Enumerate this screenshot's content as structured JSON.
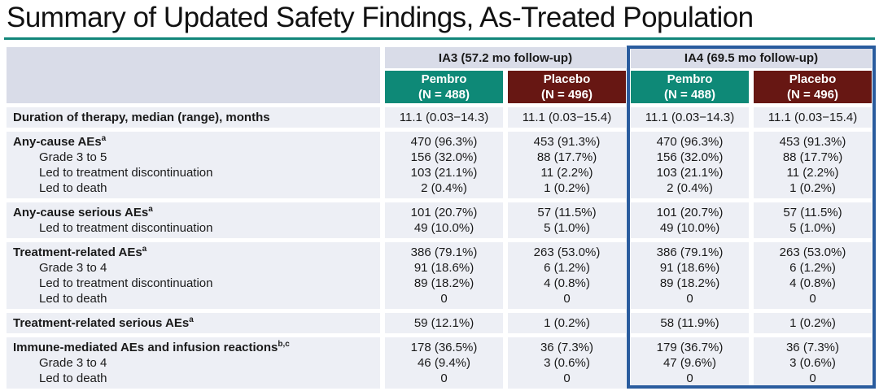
{
  "slide": {
    "title": "Summary of Updated Safety Findings, As-Treated Population"
  },
  "colors": {
    "accent_teal": "#12867A",
    "pembro_teal": "#0E8977",
    "placebo_maroon": "#671713",
    "header_bg": "#D9DCE8",
    "row_bg": "#EDEFF5",
    "highlight_border": "#2A5C9E",
    "text": "#1A1A1A"
  },
  "table": {
    "group_headers": [
      {
        "label": "IA3 (57.2 mo follow-up)"
      },
      {
        "label": "IA4 (69.5 mo follow-up)"
      }
    ],
    "column_headers": [
      {
        "label": "Pembro",
        "n": "(N = 488)"
      },
      {
        "label": "Placebo",
        "n": "(N = 496)"
      },
      {
        "label": "Pembro",
        "n": "(N = 488)"
      },
      {
        "label": "Placebo",
        "n": "(N = 496)"
      }
    ],
    "groups": [
      {
        "rows": [
          {
            "label": "Duration of therapy, median (range), months",
            "sup": "",
            "bold": true,
            "indent": false,
            "values": [
              "11.1 (0.03−14.3)",
              "11.1 (0.03−15.4)",
              "11.1 (0.03−14.3)",
              "11.1 (0.03−15.4)"
            ]
          }
        ]
      },
      {
        "rows": [
          {
            "label": "Any-cause AEs",
            "sup": "a",
            "bold": true,
            "indent": false,
            "values": [
              "470 (96.3%)",
              "453 (91.3%)",
              "470 (96.3%)",
              "453 (91.3%)"
            ]
          },
          {
            "label": "Grade 3 to 5",
            "sup": "",
            "bold": false,
            "indent": true,
            "values": [
              "156 (32.0%)",
              "88 (17.7%)",
              "156 (32.0%)",
              "88 (17.7%)"
            ]
          },
          {
            "label": "Led to treatment discontinuation",
            "sup": "",
            "bold": false,
            "indent": true,
            "values": [
              "103 (21.1%)",
              "11 (2.2%)",
              "103 (21.1%)",
              "11 (2.2%)"
            ]
          },
          {
            "label": "Led to death",
            "sup": "",
            "bold": false,
            "indent": true,
            "values": [
              "2 (0.4%)",
              "1 (0.2%)",
              "2 (0.4%)",
              "1 (0.2%)"
            ]
          }
        ]
      },
      {
        "rows": [
          {
            "label": "Any-cause serious AEs",
            "sup": "a",
            "bold": true,
            "indent": false,
            "values": [
              "101 (20.7%)",
              "57 (11.5%)",
              "101 (20.7%)",
              "57 (11.5%)"
            ]
          },
          {
            "label": "Led to treatment discontinuation",
            "sup": "",
            "bold": false,
            "indent": true,
            "values": [
              "49 (10.0%)",
              "5 (1.0%)",
              "49 (10.0%)",
              "5 (1.0%)"
            ]
          }
        ]
      },
      {
        "rows": [
          {
            "label": "Treatment-related AEs",
            "sup": "a",
            "bold": true,
            "indent": false,
            "values": [
              "386 (79.1%)",
              "263 (53.0%)",
              "386 (79.1%)",
              "263 (53.0%)"
            ]
          },
          {
            "label": "Grade 3 to 4",
            "sup": "",
            "bold": false,
            "indent": true,
            "values": [
              "91 (18.6%)",
              "6 (1.2%)",
              "91 (18.6%)",
              "6 (1.2%)"
            ]
          },
          {
            "label": "Led to treatment discontinuation",
            "sup": "",
            "bold": false,
            "indent": true,
            "values": [
              "89 (18.2%)",
              "4 (0.8%)",
              "89 (18.2%)",
              "4 (0.8%)"
            ]
          },
          {
            "label": "Led to death",
            "sup": "",
            "bold": false,
            "indent": true,
            "values": [
              "0",
              "0",
              "0",
              "0"
            ]
          }
        ]
      },
      {
        "rows": [
          {
            "label": "Treatment-related serious AEs",
            "sup": "a",
            "bold": true,
            "indent": false,
            "values": [
              "59 (12.1%)",
              "1 (0.2%)",
              "58 (11.9%)",
              "1 (0.2%)"
            ]
          }
        ]
      },
      {
        "rows": [
          {
            "label": "Immune-mediated AEs and infusion reactions",
            "sup": "b,c",
            "bold": true,
            "indent": false,
            "values": [
              "178 (36.5%)",
              "36 (7.3%)",
              "179 (36.7%)",
              "36 (7.3%)"
            ]
          },
          {
            "label": "Grade 3 to 4",
            "sup": "",
            "bold": false,
            "indent": true,
            "values": [
              "46 (9.4%)",
              "3 (0.6%)",
              "47 (9.6%)",
              "3 (0.6%)"
            ]
          },
          {
            "label": "Led to death",
            "sup": "",
            "bold": false,
            "indent": true,
            "values": [
              "0",
              "0",
              "0",
              "0"
            ]
          }
        ]
      }
    ]
  }
}
